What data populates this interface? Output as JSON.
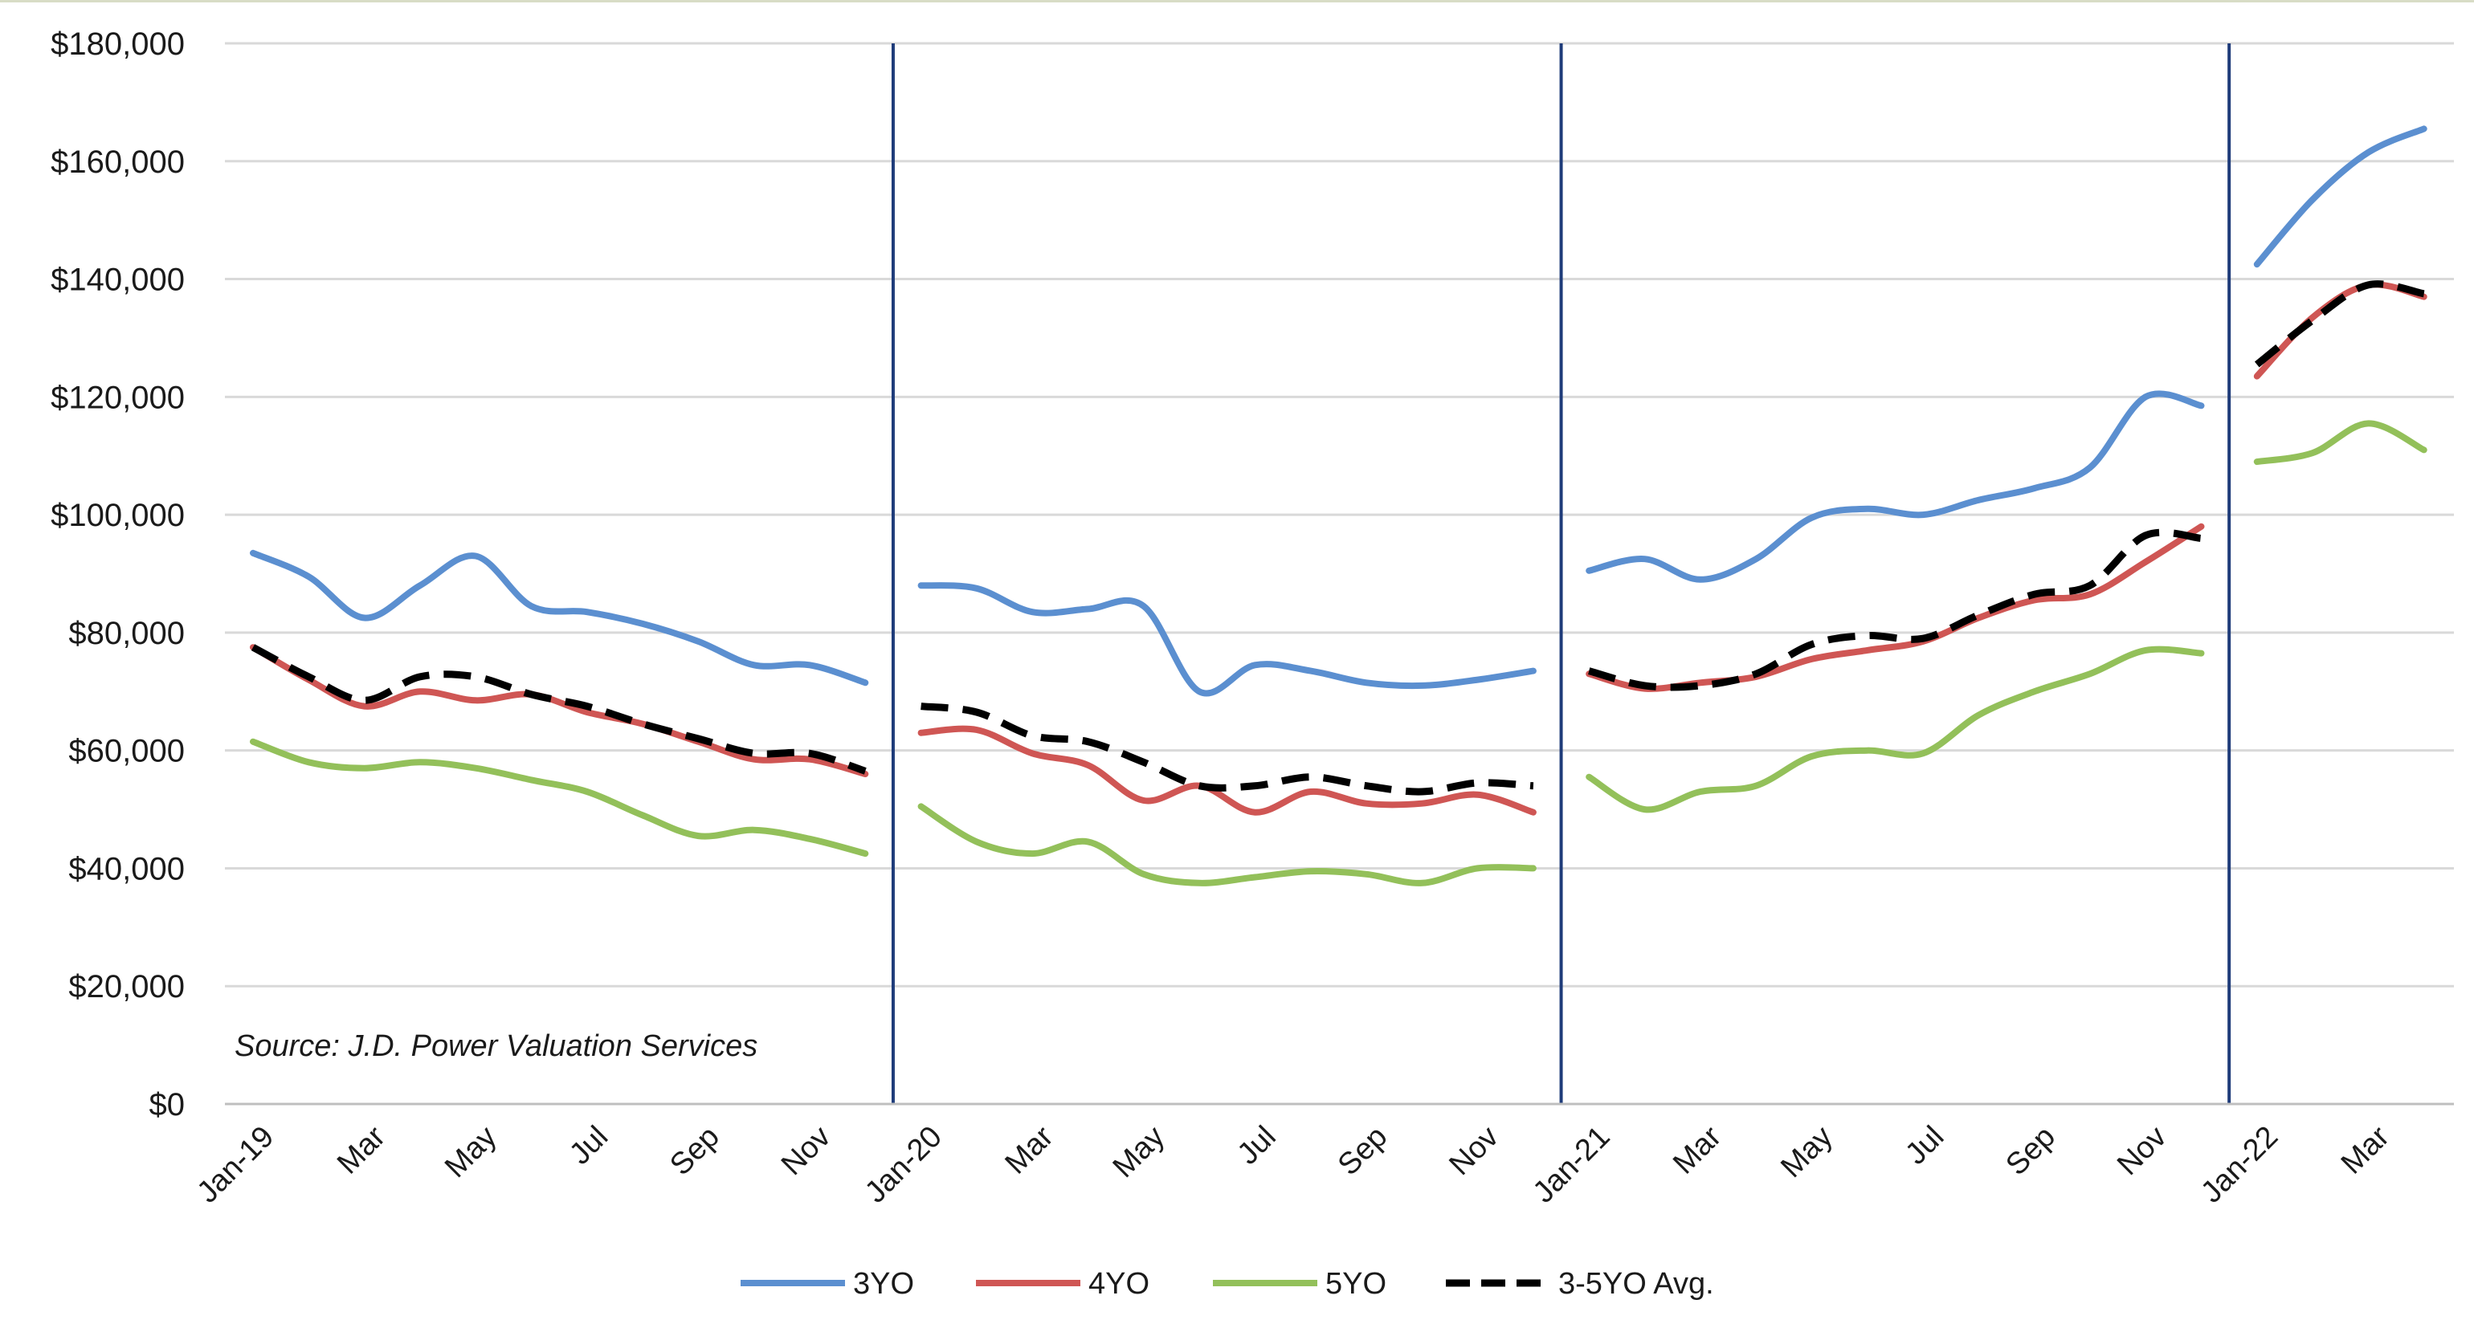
{
  "chart_data": {
    "type": "line",
    "title": "",
    "xlabel": "",
    "ylabel": "",
    "ylim": [
      0,
      180000
    ],
    "y_ticks": [
      "$0",
      "$20,000",
      "$40,000",
      "$60,000",
      "$80,000",
      "$100,000",
      "$120,000",
      "$140,000",
      "$160,000",
      "$180,000"
    ],
    "x_tick_labels": [
      "Jan-19",
      "Mar",
      "May",
      "Jul",
      "Sep",
      "Nov",
      "Jan-20",
      "Mar",
      "May",
      "Jul",
      "Sep",
      "Nov",
      "Jan-21",
      "Mar",
      "May",
      "Jul",
      "Sep",
      "Nov",
      "Jan-22",
      "Mar"
    ],
    "grid": "horizontal",
    "legend_position": "bottom",
    "colors": {
      "3YO": "#5b8fd0",
      "4YO": "#cf5654",
      "5YO": "#93c05a",
      "avg": "#000000",
      "divider": "#1f3c7a",
      "grid": "#d9d9d9"
    },
    "source_note": "Source: J.D. Power Valuation Services",
    "segments": [
      {
        "year": "2019",
        "months": [
          "Jan",
          "Feb",
          "Mar",
          "Apr",
          "May",
          "Jun",
          "Jul",
          "Aug",
          "Sep",
          "Oct",
          "Nov",
          "Dec"
        ]
      },
      {
        "year": "2020",
        "months": [
          "Jan",
          "Feb",
          "Mar",
          "Apr",
          "May",
          "Jun",
          "Jul",
          "Aug",
          "Sep",
          "Oct",
          "Nov",
          "Dec"
        ]
      },
      {
        "year": "2021",
        "months": [
          "Jan",
          "Feb",
          "Mar",
          "Apr",
          "May",
          "Jun",
          "Jul",
          "Aug",
          "Sep",
          "Oct",
          "Nov",
          "Dec"
        ]
      },
      {
        "year": "2022",
        "months": [
          "Jan",
          "Feb",
          "Mar",
          "Apr"
        ]
      }
    ],
    "series": [
      {
        "name": "3YO",
        "segments": [
          [
            93500,
            89500,
            82500,
            88000,
            93000,
            84500,
            83500,
            81500,
            78500,
            74500,
            74500,
            71500
          ],
          [
            88000,
            87500,
            83500,
            84000,
            84500,
            70000,
            74500,
            73500,
            71500,
            71000,
            72000,
            73500
          ],
          [
            90500,
            92500,
            89000,
            92500,
            99500,
            101000,
            100000,
            102500,
            104500,
            108000,
            120000,
            118500
          ],
          [
            142500,
            153500,
            161500,
            165500
          ]
        ]
      },
      {
        "name": "4YO",
        "segments": [
          [
            77500,
            72000,
            67500,
            70000,
            68500,
            69500,
            66500,
            64500,
            61500,
            58500,
            58500,
            56000
          ],
          [
            63000,
            63500,
            59500,
            57500,
            51500,
            54000,
            49500,
            53000,
            51000,
            51000,
            52500,
            49500
          ],
          [
            73000,
            70500,
            71500,
            72500,
            75500,
            77000,
            78500,
            82500,
            85500,
            86500,
            92000,
            98000
          ],
          [
            123500,
            133500,
            139000,
            137000
          ]
        ]
      },
      {
        "name": "5YO",
        "segments": [
          [
            61500,
            58000,
            57000,
            58000,
            57000,
            55000,
            53000,
            49000,
            45500,
            46500,
            45000,
            42500
          ],
          [
            50500,
            44500,
            42500,
            44500,
            39000,
            37500,
            38500,
            39500,
            39000,
            37500,
            40000,
            40000
          ],
          [
            55500,
            50000,
            53000,
            54000,
            59000,
            60000,
            59500,
            66000,
            70000,
            73000,
            77000,
            76500
          ],
          [
            109000,
            110500,
            115500,
            111000
          ]
        ]
      },
      {
        "name": "3-5YO Avg.",
        "segments": [
          [
            77500,
            72500,
            68500,
            72500,
            72500,
            69500,
            67500,
            64500,
            62000,
            59500,
            59500,
            56500
          ],
          [
            67500,
            66500,
            62500,
            61500,
            58000,
            54000,
            54000,
            55500,
            54000,
            53000,
            54500,
            54000
          ],
          [
            73500,
            71000,
            71000,
            73000,
            78000,
            79500,
            79000,
            83000,
            86500,
            88000,
            96500,
            96000
          ],
          [
            125500,
            133000,
            139000,
            137500
          ]
        ]
      }
    ]
  }
}
